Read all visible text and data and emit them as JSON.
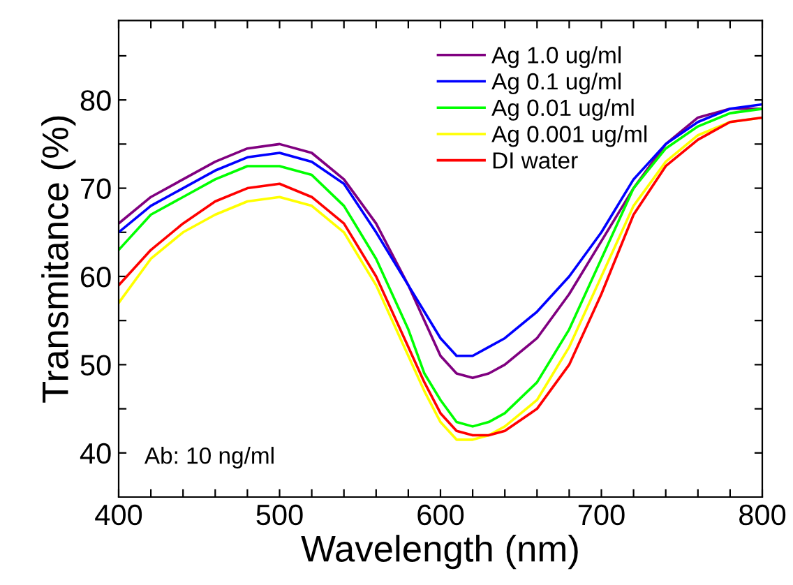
{
  "chart_data": {
    "type": "line",
    "xlabel": "Wavelength (nm)",
    "ylabel": "Transmitance (%)",
    "x": [
      400,
      420,
      440,
      460,
      480,
      500,
      520,
      540,
      560,
      580,
      590,
      600,
      610,
      620,
      630,
      640,
      660,
      680,
      700,
      720,
      740,
      760,
      780,
      800
    ],
    "series": [
      {
        "name": "Ag 1.0 ug/ml",
        "color": "#800080",
        "values": [
          66,
          69,
          71,
          73,
          74.5,
          75,
          74,
          71,
          66,
          59,
          55,
          51,
          49,
          48.5,
          49,
          50,
          53,
          58,
          64,
          70,
          75,
          78,
          79,
          79
        ]
      },
      {
        "name": "Ag 0.1 ug/ml",
        "color": "#0000ff",
        "values": [
          65,
          68,
          70,
          72,
          73.5,
          74,
          73,
          70.5,
          65,
          59,
          56,
          53,
          51,
          51,
          52,
          53,
          56,
          60,
          65,
          71,
          75,
          77.5,
          79,
          79.5
        ]
      },
      {
        "name": "Ag 0.01 ug/ml",
        "color": "#00ff00",
        "values": [
          63,
          67,
          69,
          71,
          72.5,
          72.5,
          71.5,
          68,
          62,
          54,
          49,
          46,
          43.5,
          43,
          43.5,
          44.5,
          48,
          54,
          62,
          70,
          74.5,
          77,
          78.5,
          79
        ]
      },
      {
        "name": "Ag 0.001 ug/ml",
        "color": "#ffff00",
        "values": [
          57,
          62,
          65,
          67,
          68.5,
          69,
          68,
          65,
          59,
          51,
          47,
          43.5,
          41.5,
          41.5,
          42,
          43,
          46,
          52,
          60,
          68,
          73,
          76,
          77.5,
          78
        ]
      },
      {
        "name": "DI water",
        "color": "#ff0000",
        "values": [
          59,
          63,
          66,
          68.5,
          70,
          70.5,
          69,
          66,
          60,
          52,
          48,
          44.5,
          42.5,
          42,
          42,
          42.5,
          45,
          50,
          58,
          67,
          72.5,
          75.5,
          77.5,
          78
        ]
      }
    ],
    "xlim": [
      400,
      800
    ],
    "ylim": [
      35,
      89
    ],
    "xticks": [
      400,
      {
        "value": 420,
        "label": null
      },
      {
        "value": 440,
        "label": null
      },
      {
        "value": 460,
        "label": null
      },
      {
        "value": 480,
        "label": null
      },
      500,
      {
        "value": 520,
        "label": null
      },
      {
        "value": 540,
        "label": null
      },
      {
        "value": 560,
        "label": null
      },
      {
        "value": 580,
        "label": null
      },
      600,
      {
        "value": 620,
        "label": null
      },
      {
        "value": 640,
        "label": null
      },
      {
        "value": 660,
        "label": null
      },
      {
        "value": 680,
        "label": null
      },
      700,
      {
        "value": 720,
        "label": null
      },
      {
        "value": 740,
        "label": null
      },
      {
        "value": 760,
        "label": null
      },
      {
        "value": 780,
        "label": null
      },
      800
    ],
    "yticks": [
      40,
      {
        "value": 45,
        "label": null
      },
      50,
      {
        "value": 55,
        "label": null
      },
      60,
      {
        "value": 65,
        "label": null
      },
      70,
      {
        "value": 75,
        "label": null
      },
      80,
      {
        "value": 85,
        "label": null
      }
    ],
    "annotations": [
      "Ab: 10 ng/ml"
    ],
    "legend": "top right",
    "grid": false,
    "marker": "none",
    "line_style": "solid"
  }
}
